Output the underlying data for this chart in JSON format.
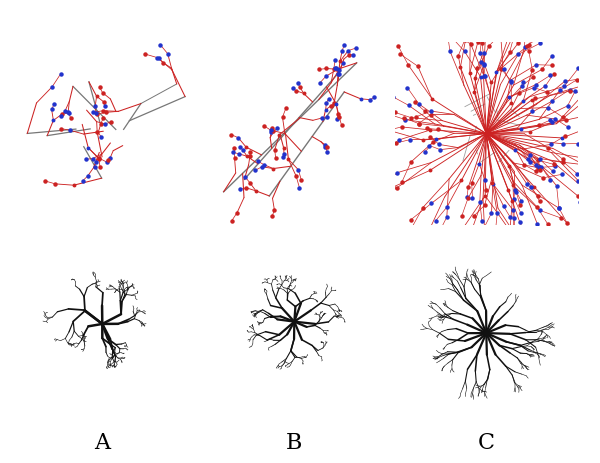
{
  "background_color": "#ffffff",
  "label_A": "A",
  "label_B": "B",
  "label_C": "C",
  "label_fontsize": 16,
  "fig_width": 6.0,
  "fig_height": 4.64,
  "line_color_sim_red": "#cc2222",
  "line_color_sim_gray": "#777777",
  "dot_color_blue": "#2233cc",
  "dot_color_red": "#cc2222",
  "real_line_color": "#111111"
}
